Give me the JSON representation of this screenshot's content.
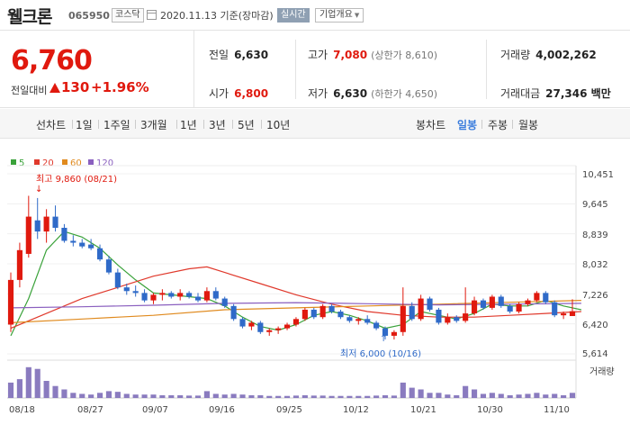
{
  "header": {
    "name": "웰크론",
    "code": "065950",
    "market": "코스닥",
    "date": "2020.11.13  기준(장마감)",
    "realtime_label": "실시간",
    "overview_label": "기업개요"
  },
  "summary": {
    "price": "6,760",
    "change_label": "전일대비",
    "change": "130",
    "change_pct": "+1.96%",
    "prev_label": "전일",
    "prev": "6,630",
    "open_label": "시가",
    "open": "6,800",
    "high_label": "고가",
    "high": "7,080",
    "high_sub": "(상한가 8,610)",
    "low_label": "저가",
    "low": "6,630",
    "low_sub": "(하한가 4,650)",
    "volume_label": "거래량",
    "volume": "4,002,262",
    "amount_label": "거래대금",
    "amount": "27,346 백만"
  },
  "periods": {
    "line_chart": "선차트",
    "items": [
      "1일",
      "1주일",
      "3개월",
      "1년",
      "3년",
      "5년",
      "10년"
    ],
    "candle_chart": "봉차트",
    "candle_items": [
      "일봉",
      "주봉",
      "월봉"
    ],
    "active": "일봉"
  },
  "colors": {
    "up": "#e0190e",
    "down": "#2f6ac8",
    "ma5": "#3aa23a",
    "ma20": "#e0392c",
    "ma60": "#e08a1e",
    "ma120": "#8a5fbf"
  },
  "chart_data": {
    "type": "candlestick",
    "legend": [
      {
        "name": "5",
        "color": "#3aa23a"
      },
      {
        "name": "20",
        "color": "#e0392c"
      },
      {
        "name": "60",
        "color": "#e08a1e"
      },
      {
        "name": "120",
        "color": "#8a5fbf"
      }
    ],
    "x_tick_labels": [
      "08/18",
      "08/27",
      "09/07",
      "09/16",
      "09/25",
      "10/12",
      "10/21",
      "10/30",
      "11/10"
    ],
    "y_tick_labels": [
      "10,451",
      "9,645",
      "8,839",
      "8,032",
      "7,226",
      "6,420",
      "5,614"
    ],
    "ylim": [
      5614,
      10451
    ],
    "annotations": {
      "high": "최고 9,860 (08/21)",
      "low": "최저 6,000 (10/16)"
    },
    "volume_label": "거래량",
    "candles": [
      {
        "o": 6400,
        "h": 7800,
        "l": 6200,
        "c": 7600,
        "v": 0.45
      },
      {
        "o": 7600,
        "h": 8600,
        "l": 7400,
        "c": 8400,
        "v": 0.55
      },
      {
        "o": 8300,
        "h": 9860,
        "l": 8200,
        "c": 9300,
        "v": 0.9
      },
      {
        "o": 9200,
        "h": 9800,
        "l": 8700,
        "c": 8900,
        "v": 0.85
      },
      {
        "o": 8900,
        "h": 9500,
        "l": 8600,
        "c": 9300,
        "v": 0.5
      },
      {
        "o": 9300,
        "h": 9600,
        "l": 8900,
        "c": 9000,
        "v": 0.35
      },
      {
        "o": 9000,
        "h": 9100,
        "l": 8600,
        "c": 8650,
        "v": 0.25
      },
      {
        "o": 8650,
        "h": 8800,
        "l": 8500,
        "c": 8600,
        "v": 0.15
      },
      {
        "o": 8600,
        "h": 8700,
        "l": 8450,
        "c": 8500,
        "v": 0.12
      },
      {
        "o": 8550,
        "h": 8700,
        "l": 8400,
        "c": 8450,
        "v": 0.1
      },
      {
        "o": 8450,
        "h": 8550,
        "l": 8100,
        "c": 8150,
        "v": 0.15
      },
      {
        "o": 8150,
        "h": 8250,
        "l": 7750,
        "c": 7800,
        "v": 0.2
      },
      {
        "o": 7800,
        "h": 7900,
        "l": 7350,
        "c": 7400,
        "v": 0.18
      },
      {
        "o": 7400,
        "h": 7500,
        "l": 7200,
        "c": 7300,
        "v": 0.12
      },
      {
        "o": 7300,
        "h": 7450,
        "l": 7150,
        "c": 7250,
        "v": 0.1
      },
      {
        "o": 7250,
        "h": 7350,
        "l": 7000,
        "c": 7050,
        "v": 0.1
      },
      {
        "o": 7050,
        "h": 7250,
        "l": 6950,
        "c": 7200,
        "v": 0.1
      },
      {
        "o": 7200,
        "h": 7350,
        "l": 7050,
        "c": 7250,
        "v": 0.08
      },
      {
        "o": 7250,
        "h": 7300,
        "l": 7100,
        "c": 7150,
        "v": 0.08
      },
      {
        "o": 7150,
        "h": 7350,
        "l": 7050,
        "c": 7250,
        "v": 0.08
      },
      {
        "o": 7250,
        "h": 7300,
        "l": 7100,
        "c": 7150,
        "v": 0.07
      },
      {
        "o": 7150,
        "h": 7250,
        "l": 7000,
        "c": 7050,
        "v": 0.07
      },
      {
        "o": 7050,
        "h": 7400,
        "l": 7000,
        "c": 7300,
        "v": 0.2
      },
      {
        "o": 7300,
        "h": 7400,
        "l": 7050,
        "c": 7100,
        "v": 0.12
      },
      {
        "o": 7100,
        "h": 7150,
        "l": 6850,
        "c": 6900,
        "v": 0.1
      },
      {
        "o": 6900,
        "h": 6950,
        "l": 6500,
        "c": 6550,
        "v": 0.12
      },
      {
        "o": 6550,
        "h": 6600,
        "l": 6300,
        "c": 6350,
        "v": 0.1
      },
      {
        "o": 6350,
        "h": 6500,
        "l": 6250,
        "c": 6450,
        "v": 0.08
      },
      {
        "o": 6450,
        "h": 6500,
        "l": 6150,
        "c": 6200,
        "v": 0.08
      },
      {
        "o": 6200,
        "h": 6300,
        "l": 6100,
        "c": 6250,
        "v": 0.06
      },
      {
        "o": 6250,
        "h": 6350,
        "l": 6150,
        "c": 6300,
        "v": 0.06
      },
      {
        "o": 6300,
        "h": 6450,
        "l": 6250,
        "c": 6400,
        "v": 0.06
      },
      {
        "o": 6400,
        "h": 6600,
        "l": 6350,
        "c": 6550,
        "v": 0.07
      },
      {
        "o": 6550,
        "h": 6850,
        "l": 6500,
        "c": 6800,
        "v": 0.08
      },
      {
        "o": 6800,
        "h": 6850,
        "l": 6550,
        "c": 6600,
        "v": 0.07
      },
      {
        "o": 6600,
        "h": 6950,
        "l": 6550,
        "c": 6900,
        "v": 0.07
      },
      {
        "o": 6900,
        "h": 6950,
        "l": 6700,
        "c": 6750,
        "v": 0.06
      },
      {
        "o": 6750,
        "h": 6800,
        "l": 6550,
        "c": 6600,
        "v": 0.06
      },
      {
        "o": 6600,
        "h": 6650,
        "l": 6450,
        "c": 6500,
        "v": 0.06
      },
      {
        "o": 6500,
        "h": 6600,
        "l": 6400,
        "c": 6550,
        "v": 0.06
      },
      {
        "o": 6550,
        "h": 6650,
        "l": 6400,
        "c": 6450,
        "v": 0.06
      },
      {
        "o": 6450,
        "h": 6500,
        "l": 6250,
        "c": 6300,
        "v": 0.07
      },
      {
        "o": 6300,
        "h": 6350,
        "l": 6000,
        "c": 6100,
        "v": 0.08
      },
      {
        "o": 6100,
        "h": 6250,
        "l": 6000,
        "c": 6200,
        "v": 0.07
      },
      {
        "o": 6200,
        "h": 7400,
        "l": 6100,
        "c": 6900,
        "v": 0.45
      },
      {
        "o": 6900,
        "h": 7000,
        "l": 6500,
        "c": 6550,
        "v": 0.3
      },
      {
        "o": 6550,
        "h": 7200,
        "l": 6500,
        "c": 7100,
        "v": 0.25
      },
      {
        "o": 7100,
        "h": 7150,
        "l": 6750,
        "c": 6800,
        "v": 0.15
      },
      {
        "o": 6800,
        "h": 6850,
        "l": 6400,
        "c": 6450,
        "v": 0.15
      },
      {
        "o": 6450,
        "h": 6700,
        "l": 6400,
        "c": 6600,
        "v": 0.1
      },
      {
        "o": 6600,
        "h": 6650,
        "l": 6450,
        "c": 6500,
        "v": 0.08
      },
      {
        "o": 6500,
        "h": 7400,
        "l": 6450,
        "c": 6700,
        "v": 0.35
      },
      {
        "o": 6700,
        "h": 7150,
        "l": 6650,
        "c": 7050,
        "v": 0.25
      },
      {
        "o": 7050,
        "h": 7100,
        "l": 6800,
        "c": 6850,
        "v": 0.12
      },
      {
        "o": 6850,
        "h": 7200,
        "l": 6800,
        "c": 7150,
        "v": 0.15
      },
      {
        "o": 7150,
        "h": 7200,
        "l": 6850,
        "c": 6900,
        "v": 0.12
      },
      {
        "o": 6900,
        "h": 6950,
        "l": 6700,
        "c": 6750,
        "v": 0.08
      },
      {
        "o": 6750,
        "h": 7000,
        "l": 6700,
        "c": 6950,
        "v": 0.1
      },
      {
        "o": 6950,
        "h": 7100,
        "l": 6900,
        "c": 7050,
        "v": 0.12
      },
      {
        "o": 7050,
        "h": 7300,
        "l": 7000,
        "c": 7250,
        "v": 0.15
      },
      {
        "o": 7250,
        "h": 7300,
        "l": 6950,
        "c": 7000,
        "v": 0.1
      },
      {
        "o": 7000,
        "h": 7050,
        "l": 6600,
        "c": 6650,
        "v": 0.12
      },
      {
        "o": 6650,
        "h": 6750,
        "l": 6550,
        "c": 6700,
        "v": 0.08
      },
      {
        "o": 6630,
        "h": 7080,
        "l": 6630,
        "c": 6760,
        "v": 0.15
      }
    ],
    "ma": {
      "5": [
        [
          0,
          6100
        ],
        [
          2,
          7100
        ],
        [
          4,
          8400
        ],
        [
          6,
          8900
        ],
        [
          8,
          8750
        ],
        [
          10,
          8450
        ],
        [
          12,
          8000
        ],
        [
          14,
          7600
        ],
        [
          16,
          7250
        ],
        [
          18,
          7200
        ],
        [
          20,
          7150
        ],
        [
          22,
          7100
        ],
        [
          24,
          6900
        ],
        [
          26,
          6600
        ],
        [
          28,
          6350
        ],
        [
          30,
          6250
        ],
        [
          32,
          6400
        ],
        [
          34,
          6650
        ],
        [
          36,
          6750
        ],
        [
          38,
          6650
        ],
        [
          40,
          6500
        ],
        [
          42,
          6300
        ],
        [
          44,
          6400
        ],
        [
          46,
          6750
        ],
        [
          48,
          6650
        ],
        [
          50,
          6550
        ],
        [
          52,
          6700
        ],
        [
          54,
          6950
        ],
        [
          56,
          6900
        ],
        [
          58,
          6900
        ],
        [
          60,
          7050
        ],
        [
          62,
          6900
        ],
        [
          64,
          6800
        ]
      ],
      "20": [
        [
          0,
          6300
        ],
        [
          4,
          6700
        ],
        [
          8,
          7100
        ],
        [
          12,
          7400
        ],
        [
          16,
          7700
        ],
        [
          20,
          7900
        ],
        [
          22,
          7950
        ],
        [
          24,
          7800
        ],
        [
          28,
          7500
        ],
        [
          32,
          7200
        ],
        [
          36,
          6950
        ],
        [
          40,
          6750
        ],
        [
          44,
          6650
        ],
        [
          48,
          6600
        ],
        [
          52,
          6600
        ],
        [
          56,
          6650
        ],
        [
          60,
          6700
        ],
        [
          64,
          6750
        ]
      ],
      "60": [
        [
          0,
          6450
        ],
        [
          8,
          6550
        ],
        [
          16,
          6650
        ],
        [
          24,
          6800
        ],
        [
          32,
          6850
        ],
        [
          40,
          6900
        ],
        [
          48,
          6950
        ],
        [
          56,
          7000
        ],
        [
          64,
          7050
        ]
      ],
      "120": [
        [
          0,
          6850
        ],
        [
          8,
          6880
        ],
        [
          16,
          6920
        ],
        [
          24,
          6970
        ],
        [
          32,
          6990
        ],
        [
          40,
          6960
        ],
        [
          48,
          6930
        ],
        [
          56,
          6950
        ],
        [
          64,
          6970
        ]
      ]
    }
  }
}
